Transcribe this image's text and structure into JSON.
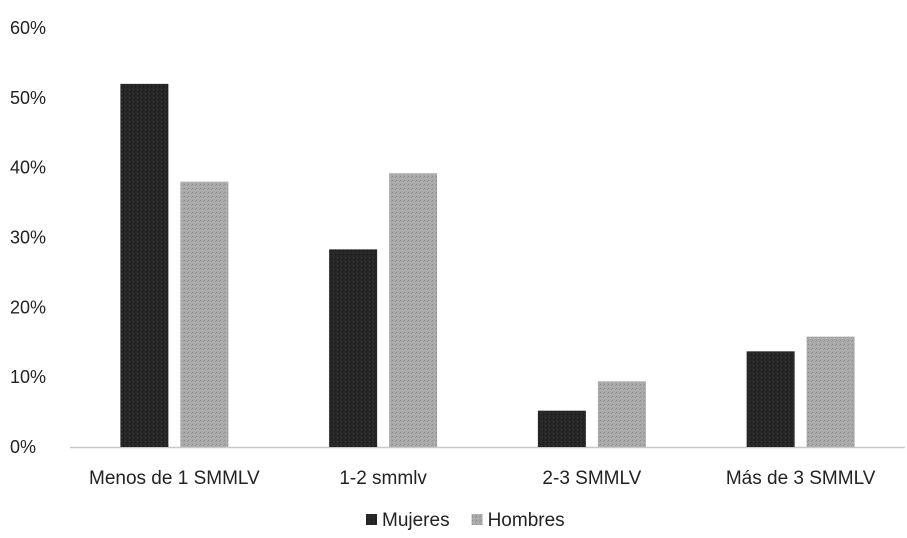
{
  "chart_data": {
    "type": "bar",
    "title": "",
    "xlabel": "",
    "ylabel": "",
    "categories": [
      "Menos de 1 SMMLV",
      "1-2 smmlv",
      "2-3 SMMLV",
      "Más de 3 SMMLV"
    ],
    "series": [
      {
        "name": "Mujeres",
        "color": "#262626",
        "values": [
          52,
          28.3,
          5.2,
          13.7
        ]
      },
      {
        "name": "Hombres",
        "color": "#a6a6a6",
        "values": [
          38,
          39.2,
          9.4,
          15.8
        ]
      }
    ],
    "ylim": [
      0,
      60
    ],
    "yticks": [
      "0%",
      "10%",
      "20%",
      "30%",
      "40%",
      "50%",
      "60%"
    ],
    "grid": false,
    "legend": "bottom-center"
  }
}
